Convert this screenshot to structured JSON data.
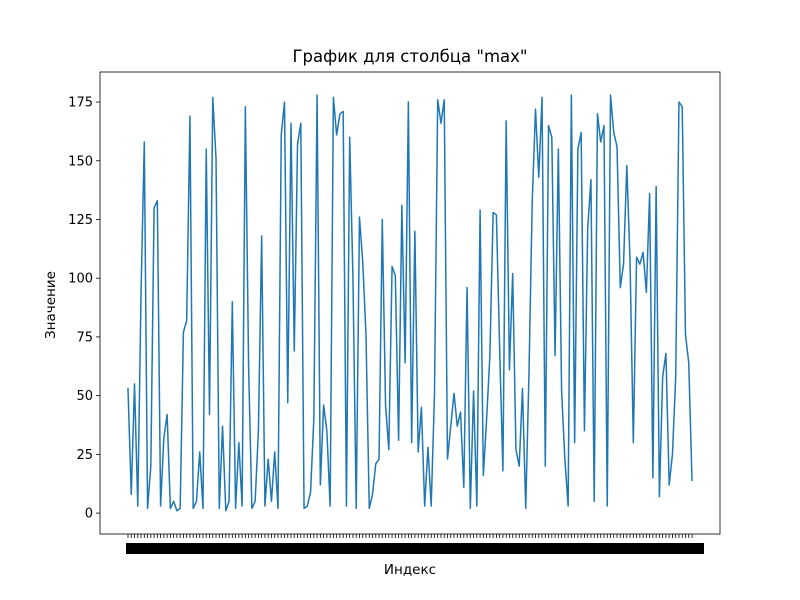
{
  "chart_data": {
    "type": "line",
    "title": "График для столбца \"max\"",
    "xlabel": "Индекс",
    "ylabel": "Значение",
    "ylim": [
      -8.9,
      187.8
    ],
    "yticks": [
      0,
      25,
      50,
      75,
      100,
      125,
      150,
      175
    ],
    "grid": false,
    "legend": "none",
    "color": "#1f77b4",
    "series": [
      {
        "values": [
          53,
          8,
          55,
          3,
          94,
          158,
          2,
          20,
          130,
          133,
          3,
          32,
          42,
          2,
          5,
          1,
          2,
          77,
          82,
          169,
          2,
          5,
          26,
          2,
          155,
          42,
          177,
          151,
          2,
          37,
          1,
          5,
          90,
          2,
          30,
          3,
          173,
          62,
          2,
          5,
          35,
          118,
          3,
          23,
          5,
          26,
          2,
          161,
          175,
          47,
          166,
          69,
          157,
          166,
          2,
          3,
          9,
          40,
          178,
          12,
          46,
          35,
          3,
          177,
          161,
          170,
          171,
          3,
          160,
          100,
          2,
          126,
          107,
          76,
          2,
          8,
          21,
          23,
          125,
          46,
          27,
          105,
          101,
          31,
          131,
          64,
          175,
          30,
          120,
          26,
          45,
          3,
          28,
          3,
          50,
          176,
          166,
          176,
          23,
          37,
          51,
          37,
          43,
          11,
          96,
          2,
          52,
          3,
          129,
          16,
          40,
          67,
          128,
          127,
          70,
          18,
          167,
          61,
          102,
          27,
          20,
          53,
          2,
          60,
          133,
          172,
          143,
          177,
          20,
          165,
          160,
          67,
          155,
          52,
          23,
          3,
          178,
          30,
          155,
          162,
          35,
          121,
          142,
          5,
          170,
          158,
          165,
          3,
          178,
          162,
          156,
          96,
          106,
          148,
          107,
          30,
          109,
          106,
          111,
          94,
          136,
          15,
          139,
          7,
          58,
          68,
          12,
          25,
          58,
          175,
          173,
          76,
          64,
          14
        ]
      }
    ]
  }
}
